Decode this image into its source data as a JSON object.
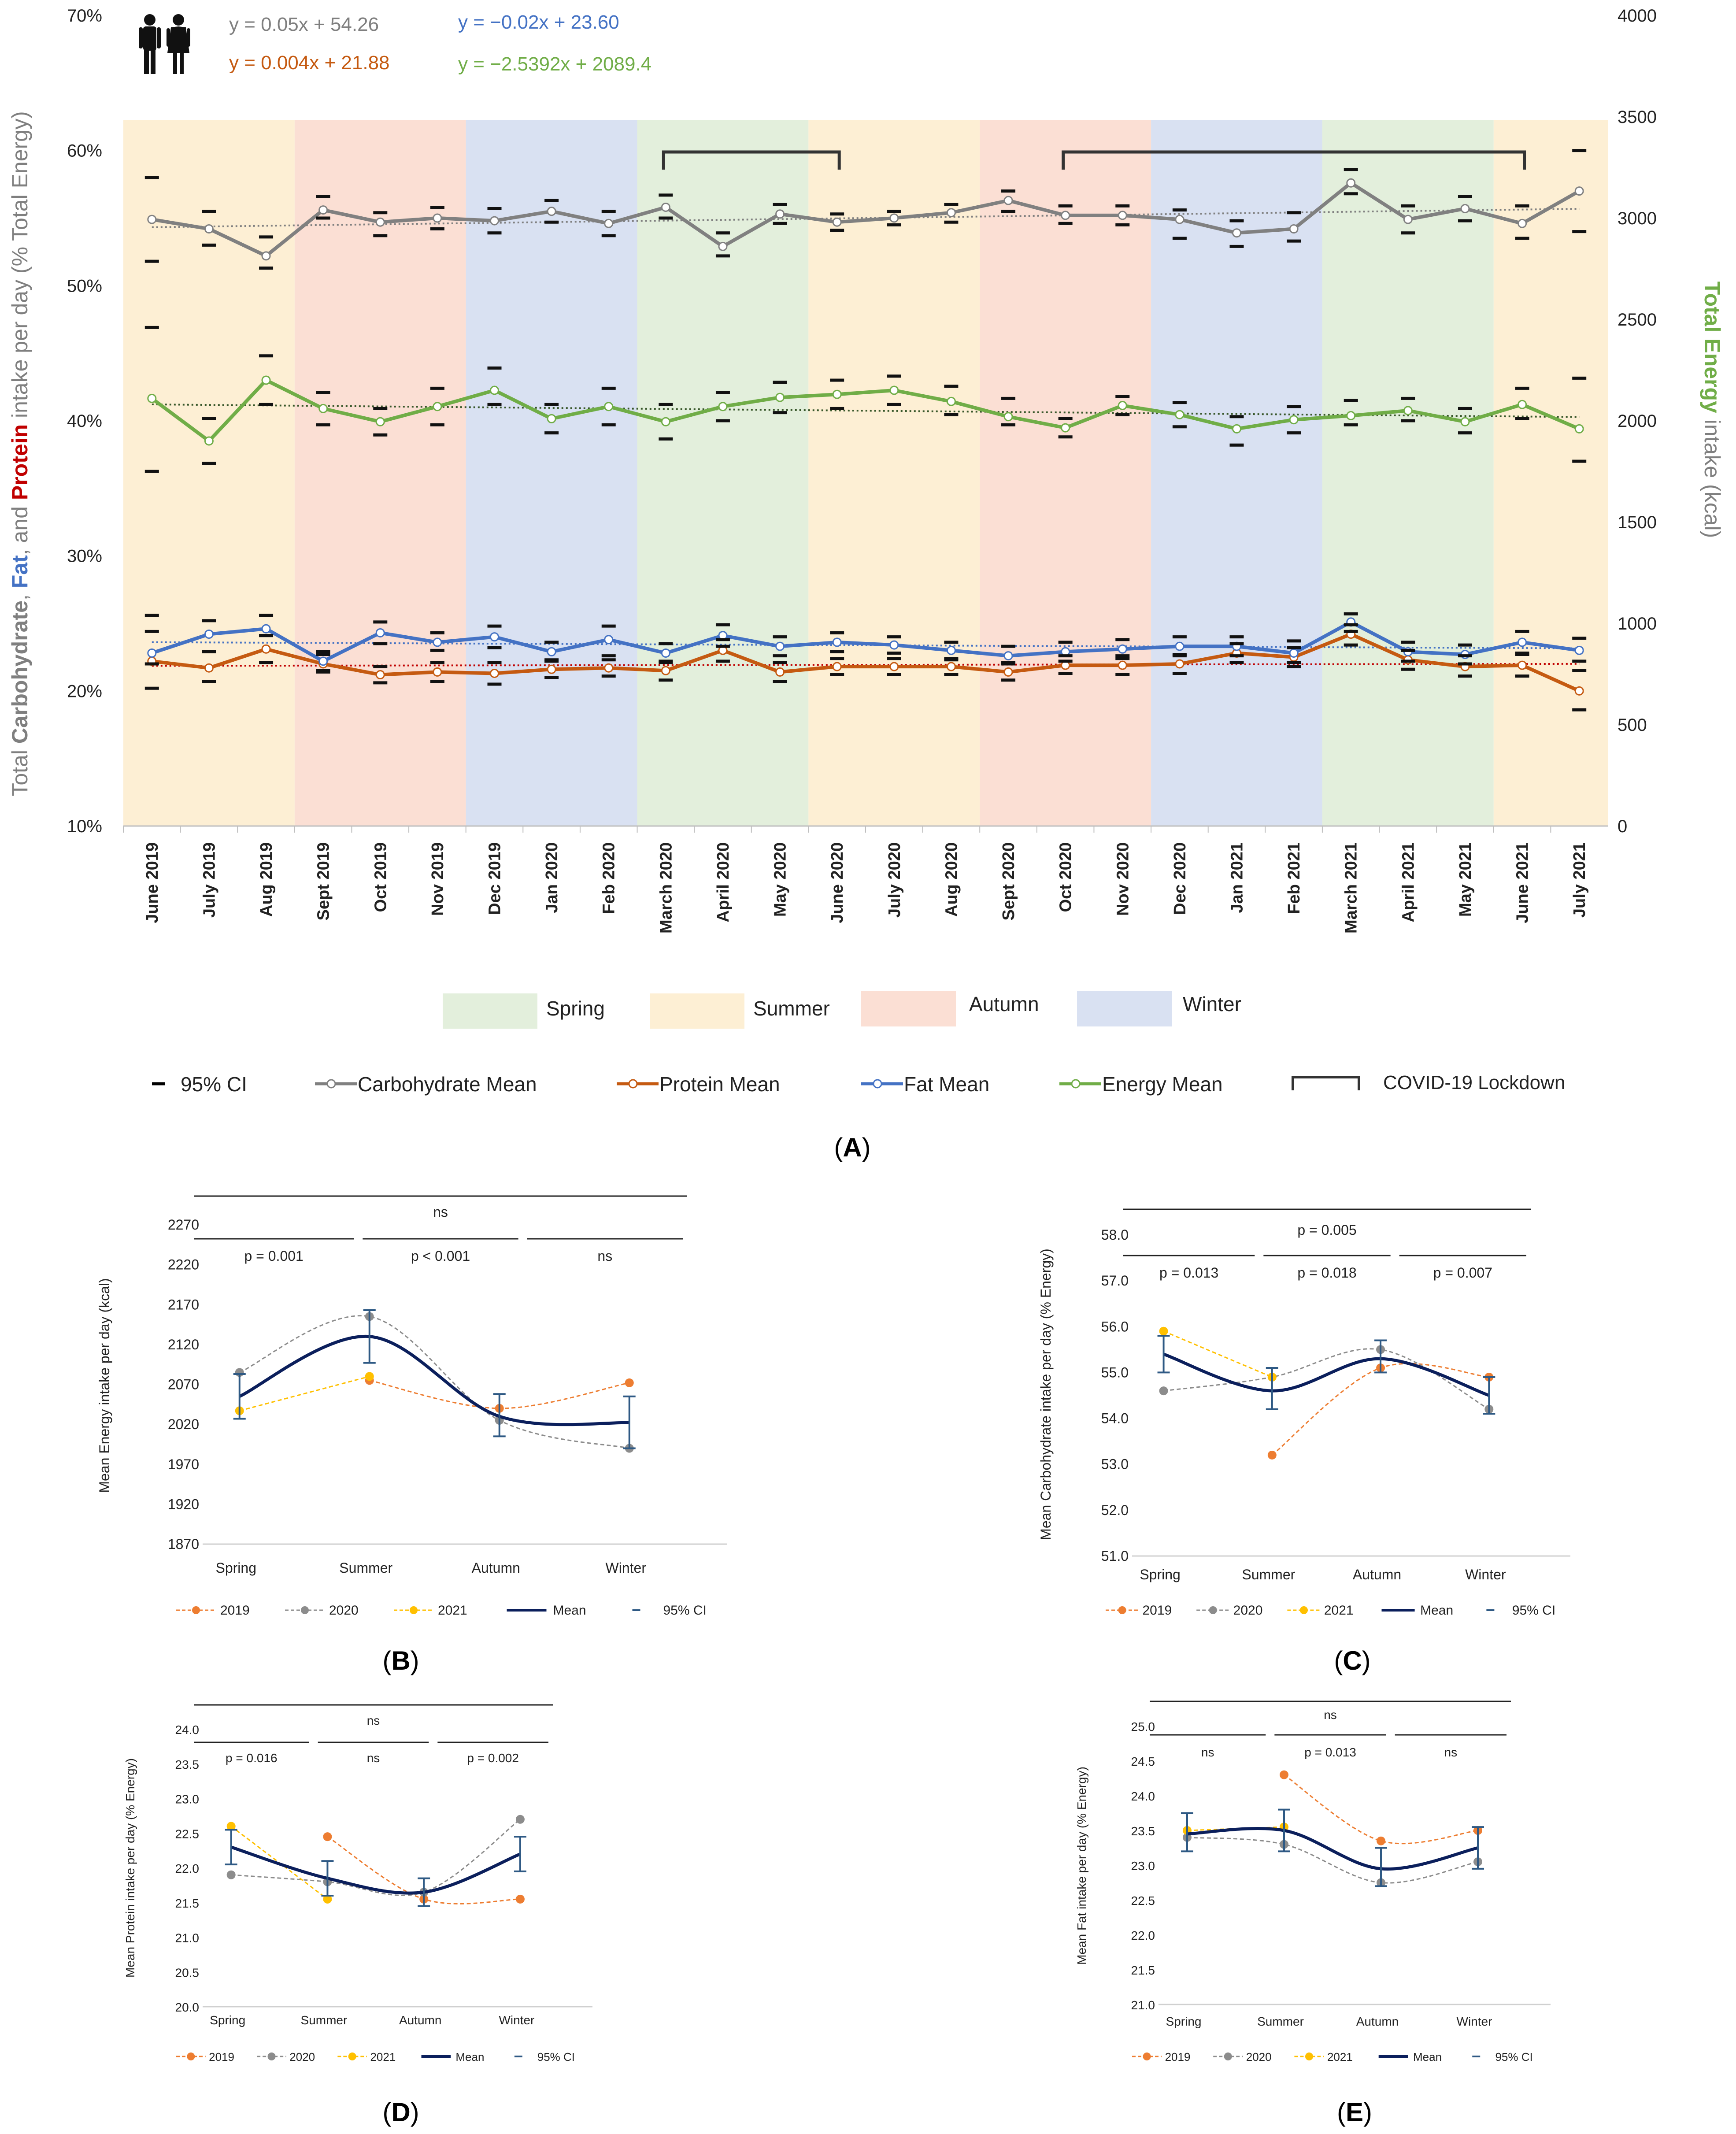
{
  "panelA": {
    "letter": "A",
    "y_left_label_parts": [
      "Total ",
      "Carbohydrate",
      ", ",
      "Fat",
      ", and ",
      "Protein",
      " intake per day (% Total Energy)"
    ],
    "y_right_label_parts": [
      "Total Energy",
      " intake (kcal)"
    ],
    "eq_carb": "y = 0.05x + 54.26",
    "eq_protein": "y = 0.004x + 21.88",
    "eq_fat": "y = −0.02x + 23.60",
    "eq_energy": "y = −2.5392x + 2089.4",
    "season_legend": {
      "spring": "Spring",
      "summer": "Summer",
      "autumn": "Autumn",
      "winter": "Winter"
    },
    "line_legend": {
      "ci": "95% CI",
      "carb": "Carbohydrate Mean",
      "protein": "Protein Mean",
      "fat": "Fat Mean",
      "energy": "Energy Mean",
      "lockdown": "COVID-19 Lockdown"
    }
  },
  "colors": {
    "spring": "#e3efdc",
    "summer": "#fdefd4",
    "autumn": "#fbdfd4",
    "winter": "#d9e1f2",
    "carb": "#808080",
    "protein": "#c55a11",
    "fat": "#4472c4",
    "energy": "#70ad47",
    "y2019": "#ed7d31",
    "y2020": "#8c8c8c",
    "y2021": "#ffc000",
    "mean": "#0b1f5c",
    "ci": "#2e5984"
  },
  "chart_data": [
    {
      "type": "line",
      "title": "Panel A",
      "categories": [
        "June 2019",
        "July 2019",
        "Aug 2019",
        "Sept 2019",
        "Oct 2019",
        "Nov 2019",
        "Dec 2019",
        "Jan 2020",
        "Feb 2020",
        "March 2020",
        "April 2020",
        "May 2020",
        "June 2020",
        "July 2020",
        "Aug 2020",
        "Sept 2020",
        "Oct 2020",
        "Nov 2020",
        "Dec 2020",
        "Jan 2021",
        "Feb 2021",
        "March 2021",
        "April 2021",
        "May 2021",
        "June 2021",
        "July 2021"
      ],
      "seasons": [
        "Summer",
        "Summer",
        "Summer",
        "Autumn",
        "Autumn",
        "Autumn",
        "Winter",
        "Winter",
        "Winter",
        "Spring",
        "Spring",
        "Spring",
        "Summer",
        "Summer",
        "Summer",
        "Autumn",
        "Autumn",
        "Autumn",
        "Winter",
        "Winter",
        "Winter",
        "Spring",
        "Spring",
        "Spring",
        "Summer",
        "Summer"
      ],
      "lockdowns": [
        {
          "from": "March 2020",
          "to": "June 2020"
        },
        {
          "from": "Oct 2020",
          "to": "June 2021"
        }
      ],
      "ylim_left": [
        10,
        70
      ],
      "yticks_left": [
        "10%",
        "20%",
        "30%",
        "40%",
        "50%",
        "60%",
        "70%"
      ],
      "ylim_right": [
        0,
        4000
      ],
      "yticks_right": [
        "0",
        "500",
        "1000",
        "1500",
        "2000",
        "2500",
        "3000",
        "3500",
        "4000"
      ],
      "series": [
        {
          "name": "Carbohydrate Mean",
          "axis": "left",
          "values": [
            54.9,
            54.2,
            52.2,
            55.6,
            54.7,
            55.0,
            54.8,
            55.5,
            54.6,
            55.8,
            52.9,
            55.3,
            54.7,
            55.0,
            55.4,
            56.3,
            55.2,
            55.2,
            54.9,
            53.9,
            54.2,
            57.6,
            54.9,
            55.7,
            54.6,
            57.0
          ],
          "ci_low": [
            51.8,
            53.0,
            51.3,
            55.0,
            53.7,
            54.2,
            53.9,
            54.7,
            53.7,
            55.0,
            52.2,
            54.6,
            54.1,
            54.5,
            54.7,
            55.5,
            54.6,
            54.5,
            53.5,
            52.9,
            53.3,
            56.8,
            53.9,
            54.8,
            53.5,
            54.0
          ],
          "ci_high": [
            58.0,
            55.5,
            53.6,
            56.6,
            55.4,
            55.8,
            55.7,
            56.3,
            55.5,
            56.7,
            53.9,
            56.0,
            55.3,
            55.5,
            56.0,
            57.0,
            55.9,
            55.9,
            55.6,
            54.8,
            55.4,
            58.6,
            55.9,
            56.6,
            55.9,
            60.0
          ]
        },
        {
          "name": "Fat Mean",
          "axis": "left",
          "values": [
            22.8,
            24.2,
            24.6,
            22.2,
            24.3,
            23.6,
            24.0,
            22.9,
            23.8,
            22.8,
            24.1,
            23.3,
            23.6,
            23.4,
            23.0,
            22.6,
            22.9,
            23.1,
            23.3,
            23.3,
            22.8,
            25.1,
            22.9,
            22.7,
            23.6,
            23.0
          ],
          "ci_low": [
            22.0,
            22.9,
            24.1,
            21.5,
            23.5,
            23.0,
            23.2,
            22.2,
            22.6,
            22.1,
            23.3,
            22.6,
            22.9,
            22.8,
            22.3,
            22.0,
            22.2,
            22.4,
            22.6,
            22.6,
            22.1,
            24.4,
            22.2,
            22.0,
            22.8,
            22.2
          ],
          "ci_high": [
            24.4,
            25.2,
            25.6,
            22.9,
            25.1,
            24.3,
            24.8,
            23.6,
            24.8,
            23.5,
            24.9,
            24.0,
            24.3,
            24.0,
            23.6,
            23.3,
            23.6,
            23.8,
            24.0,
            24.0,
            23.7,
            25.7,
            23.6,
            23.4,
            24.4,
            23.9
          ]
        },
        {
          "name": "Protein Mean",
          "axis": "left",
          "values": [
            22.2,
            21.7,
            23.1,
            22.0,
            21.2,
            21.4,
            21.3,
            21.6,
            21.7,
            21.5,
            23.0,
            21.4,
            21.8,
            21.8,
            21.8,
            21.4,
            21.9,
            21.9,
            22.0,
            22.8,
            22.5,
            24.2,
            22.3,
            21.8,
            21.9,
            20.0
          ],
          "ci_low": [
            20.2,
            20.7,
            22.1,
            21.4,
            20.6,
            20.7,
            20.5,
            21.0,
            21.1,
            20.8,
            22.2,
            20.7,
            21.2,
            21.2,
            21.2,
            20.8,
            21.3,
            21.2,
            21.3,
            22.1,
            21.8,
            23.4,
            21.6,
            21.1,
            21.1,
            18.6
          ],
          "ci_high": [
            25.6,
            22.9,
            24.1,
            22.7,
            21.8,
            22.1,
            22.1,
            22.3,
            22.3,
            22.2,
            23.8,
            22.1,
            22.4,
            22.4,
            22.4,
            22.1,
            22.6,
            22.6,
            22.7,
            23.5,
            23.2,
            24.9,
            23.0,
            22.6,
            22.7,
            21.5
          ]
        },
        {
          "name": "Energy Mean",
          "axis": "right",
          "values": [
            2110,
            1900,
            2200,
            2060,
            1995,
            2070,
            2150,
            2010,
            2070,
            1995,
            2070,
            2115,
            2130,
            2150,
            2095,
            2020,
            1965,
            2075,
            2030,
            1960,
            2005,
            2025,
            2050,
            1995,
            2080,
            1960
          ],
          "ci_low": [
            1750,
            1790,
            2080,
            1980,
            1930,
            1980,
            2080,
            1940,
            1980,
            1910,
            2000,
            2040,
            2060,
            2080,
            2030,
            1980,
            1920,
            2030,
            1970,
            1880,
            1940,
            1980,
            2000,
            1940,
            2010,
            1800
          ],
          "ci_high": [
            2460,
            2010,
            2320,
            2140,
            2060,
            2160,
            2260,
            2080,
            2160,
            2080,
            2140,
            2190,
            2200,
            2220,
            2170,
            2110,
            2010,
            2120,
            2090,
            2020,
            2070,
            2100,
            2110,
            2060,
            2160,
            2210
          ]
        }
      ],
      "trendlines": [
        {
          "series": "Carbohydrate Mean",
          "equation": "y = 0.05x + 54.26"
        },
        {
          "series": "Fat Mean",
          "equation": "y = −0.02x + 23.60"
        },
        {
          "series": "Protein Mean",
          "equation": "y = 0.004x + 21.88"
        },
        {
          "series": "Energy Mean",
          "equation": "y = −2.5392x + 2089.4"
        }
      ]
    },
    {
      "type": "line",
      "title": "Panel B",
      "letter": "B",
      "ylabel": "Mean Energy intake per day (kcal)",
      "ylim": [
        1870,
        2270
      ],
      "yticks": [
        1870,
        1920,
        1970,
        2020,
        2070,
        2120,
        2170,
        2220,
        2270
      ],
      "decimals": 0,
      "categories": [
        "Spring",
        "Summer",
        "Autumn",
        "Winter"
      ],
      "series": [
        {
          "name": "2019",
          "values": [
            null,
            2075,
            2040,
            2072
          ]
        },
        {
          "name": "2020",
          "values": [
            2085,
            2155,
            2025,
            1990
          ]
        },
        {
          "name": "2021",
          "values": [
            2037,
            2080,
            null,
            null
          ]
        },
        {
          "name": "Mean",
          "values": [
            2055,
            2130,
            2030,
            2022
          ]
        }
      ],
      "ci_low": [
        2027,
        2097,
        2005,
        1990
      ],
      "ci_high": [
        2083,
        2163,
        2058,
        2055
      ],
      "legend": [
        "2019",
        "2020",
        "2021",
        "Mean",
        "95% CI"
      ],
      "sig_top": "ns",
      "sig_pairs": [
        "p = 0.001",
        "p < 0.001",
        "ns"
      ]
    },
    {
      "type": "line",
      "title": "Panel C",
      "letter": "C",
      "ylabel": "Mean Carbohydrate intake per day (% Energy)",
      "ylim": [
        51.0,
        58.0
      ],
      "yticks": [
        51.0,
        52.0,
        53.0,
        54.0,
        55.0,
        56.0,
        57.0,
        58.0
      ],
      "decimals": 1,
      "categories": [
        "Spring",
        "Summer",
        "Autumn",
        "Winter"
      ],
      "series": [
        {
          "name": "2019",
          "values": [
            null,
            53.2,
            55.1,
            54.9
          ]
        },
        {
          "name": "2020",
          "values": [
            54.6,
            54.9,
            55.5,
            54.2
          ]
        },
        {
          "name": "2021",
          "values": [
            55.9,
            54.9,
            null,
            null
          ]
        },
        {
          "name": "Mean",
          "values": [
            55.4,
            54.6,
            55.3,
            54.5
          ]
        }
      ],
      "ci_low": [
        55.0,
        54.2,
        55.0,
        54.1
      ],
      "ci_high": [
        55.8,
        55.1,
        55.7,
        54.9
      ],
      "legend": [
        "2019",
        "2020",
        "2021",
        "Mean",
        "95% CI"
      ],
      "sig_top": "p = 0.005",
      "sig_pairs": [
        "p = 0.013",
        "p = 0.018",
        "p = 0.007"
      ]
    },
    {
      "type": "line",
      "title": "Panel D",
      "letter": "D",
      "ylabel": "Mean Protein intake per day (% Energy)",
      "ylim": [
        20.0,
        24.0
      ],
      "yticks": [
        20.0,
        20.5,
        21.0,
        21.5,
        22.0,
        22.5,
        23.0,
        23.5,
        24.0
      ],
      "decimals": 1,
      "categories": [
        "Spring",
        "Summer",
        "Autumn",
        "Winter"
      ],
      "series": [
        {
          "name": "2019",
          "values": [
            null,
            22.45,
            21.55,
            21.55
          ]
        },
        {
          "name": "2020",
          "values": [
            21.9,
            21.8,
            21.65,
            22.7
          ]
        },
        {
          "name": "2021",
          "values": [
            22.6,
            21.55,
            null,
            null
          ]
        },
        {
          "name": "Mean",
          "values": [
            22.3,
            21.85,
            21.65,
            22.2
          ]
        }
      ],
      "ci_low": [
        22.05,
        21.6,
        21.45,
        21.95
      ],
      "ci_high": [
        22.55,
        22.1,
        21.85,
        22.45
      ],
      "legend": [
        "2019",
        "2020",
        "2021",
        "Mean",
        "95% CI"
      ],
      "sig_top": "ns",
      "sig_pairs": [
        "p = 0.016",
        "ns",
        "p = 0.002"
      ]
    },
    {
      "type": "line",
      "title": "Panel E",
      "letter": "E",
      "ylabel": "Mean Fat intake per day (% Energy)",
      "ylim": [
        21.0,
        25.0
      ],
      "yticks": [
        21.0,
        21.5,
        22.0,
        22.5,
        23.0,
        23.5,
        24.0,
        24.5,
        25.0
      ],
      "decimals": 1,
      "categories": [
        "Spring",
        "Summer",
        "Autumn",
        "Winter"
      ],
      "series": [
        {
          "name": "2019",
          "values": [
            null,
            24.3,
            23.35,
            23.5
          ]
        },
        {
          "name": "2020",
          "values": [
            23.4,
            23.3,
            22.75,
            23.05
          ]
        },
        {
          "name": "2021",
          "values": [
            23.5,
            23.55,
            null,
            null
          ]
        },
        {
          "name": "Mean",
          "values": [
            23.45,
            23.5,
            22.95,
            23.25
          ]
        }
      ],
      "ci_low": [
        23.2,
        23.2,
        22.7,
        22.95
      ],
      "ci_high": [
        23.75,
        23.8,
        23.25,
        23.55
      ],
      "legend": [
        "2019",
        "2020",
        "2021",
        "Mean",
        "95% CI"
      ],
      "sig_top": "ns",
      "sig_pairs": [
        "ns",
        "p = 0.013",
        "ns"
      ]
    }
  ]
}
